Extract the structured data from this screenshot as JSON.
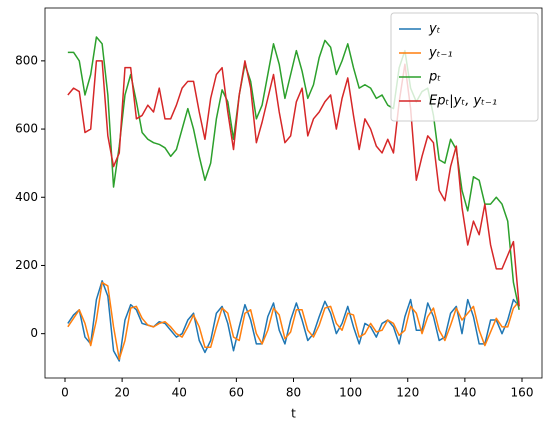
{
  "chart_data": {
    "type": "line",
    "xlabel": "t",
    "x": [
      1,
      3,
      5,
      7,
      9,
      11,
      13,
      15,
      17,
      19,
      21,
      23,
      25,
      27,
      29,
      31,
      33,
      35,
      37,
      39,
      41,
      43,
      45,
      47,
      49,
      51,
      53,
      55,
      57,
      59,
      61,
      63,
      65,
      67,
      69,
      71,
      73,
      75,
      77,
      79,
      81,
      83,
      85,
      87,
      89,
      91,
      93,
      95,
      97,
      99,
      101,
      103,
      105,
      107,
      109,
      111,
      113,
      115,
      117,
      119,
      121,
      123,
      125,
      127,
      129,
      131,
      133,
      135,
      137,
      139,
      141,
      143,
      145,
      147,
      149,
      151,
      153,
      155,
      157,
      159
    ],
    "series": [
      {
        "name": "yₜ",
        "color": "#1f77b4",
        "values": [
          30,
          55,
          70,
          -10,
          -30,
          100,
          155,
          110,
          -50,
          -80,
          40,
          85,
          70,
          30,
          25,
          20,
          35,
          30,
          10,
          -10,
          0,
          40,
          60,
          -20,
          -55,
          -20,
          60,
          80,
          30,
          -50,
          20,
          85,
          40,
          -30,
          -30,
          50,
          90,
          10,
          -30,
          40,
          90,
          40,
          -20,
          0,
          50,
          95,
          60,
          0,
          30,
          80,
          20,
          -30,
          30,
          20,
          -10,
          30,
          40,
          20,
          -30,
          50,
          100,
          10,
          10,
          90,
          50,
          -20,
          -10,
          60,
          80,
          0,
          100,
          50,
          -30,
          -30,
          40,
          40,
          0,
          40,
          100,
          80
        ]
      },
      {
        "name": "yₜ₋₁",
        "color": "#ff7f0e",
        "values": [
          20,
          45,
          70,
          30,
          -35,
          40,
          150,
          140,
          20,
          -75,
          -20,
          75,
          80,
          45,
          25,
          20,
          30,
          35,
          20,
          0,
          -10,
          20,
          55,
          20,
          -40,
          -40,
          20,
          75,
          60,
          -10,
          -20,
          60,
          70,
          0,
          -30,
          10,
          75,
          55,
          -15,
          5,
          70,
          70,
          10,
          -10,
          25,
          75,
          80,
          30,
          10,
          60,
          55,
          -10,
          0,
          30,
          5,
          10,
          40,
          30,
          -5,
          10,
          80,
          60,
          0,
          50,
          75,
          10,
          -20,
          25,
          75,
          40,
          60,
          80,
          10,
          -35,
          5,
          45,
          20,
          20,
          75,
          95
        ]
      },
      {
        "name": "pₜ",
        "color": "#2ca02c",
        "values": [
          825,
          825,
          800,
          700,
          760,
          870,
          850,
          700,
          430,
          550,
          700,
          760,
          680,
          590,
          570,
          560,
          555,
          545,
          520,
          540,
          600,
          660,
          600,
          520,
          450,
          500,
          630,
          715,
          680,
          570,
          700,
          790,
          740,
          630,
          670,
          760,
          850,
          790,
          690,
          760,
          830,
          770,
          690,
          730,
          810,
          860,
          840,
          760,
          800,
          850,
          780,
          720,
          730,
          720,
          690,
          700,
          670,
          660,
          780,
          830,
          720,
          680,
          710,
          720,
          640,
          510,
          500,
          570,
          540,
          420,
          360,
          460,
          450,
          380,
          380,
          400,
          380,
          330,
          150,
          70
        ]
      },
      {
        "name": "Epₜ|yₜ, yₜ₋₁",
        "color": "#d62728",
        "values": [
          700,
          720,
          710,
          590,
          600,
          800,
          800,
          580,
          490,
          530,
          780,
          780,
          630,
          640,
          670,
          650,
          720,
          630,
          630,
          670,
          720,
          740,
          740,
          650,
          570,
          690,
          760,
          780,
          650,
          540,
          700,
          800,
          720,
          560,
          620,
          690,
          760,
          650,
          560,
          580,
          680,
          720,
          580,
          630,
          650,
          680,
          700,
          600,
          690,
          750,
          640,
          540,
          630,
          600,
          550,
          530,
          570,
          530,
          680,
          790,
          660,
          450,
          520,
          580,
          560,
          420,
          390,
          490,
          550,
          370,
          260,
          330,
          290,
          380,
          260,
          190,
          190,
          230,
          270,
          80
        ]
      }
    ],
    "xlim": [
      -7,
      167
    ],
    "xticks": [
      0,
      20,
      40,
      60,
      80,
      100,
      120,
      140,
      160
    ],
    "ylim": [
      -130,
      955
    ],
    "yticks": [
      0,
      200,
      400,
      600,
      800
    ],
    "legend": "upper right"
  }
}
